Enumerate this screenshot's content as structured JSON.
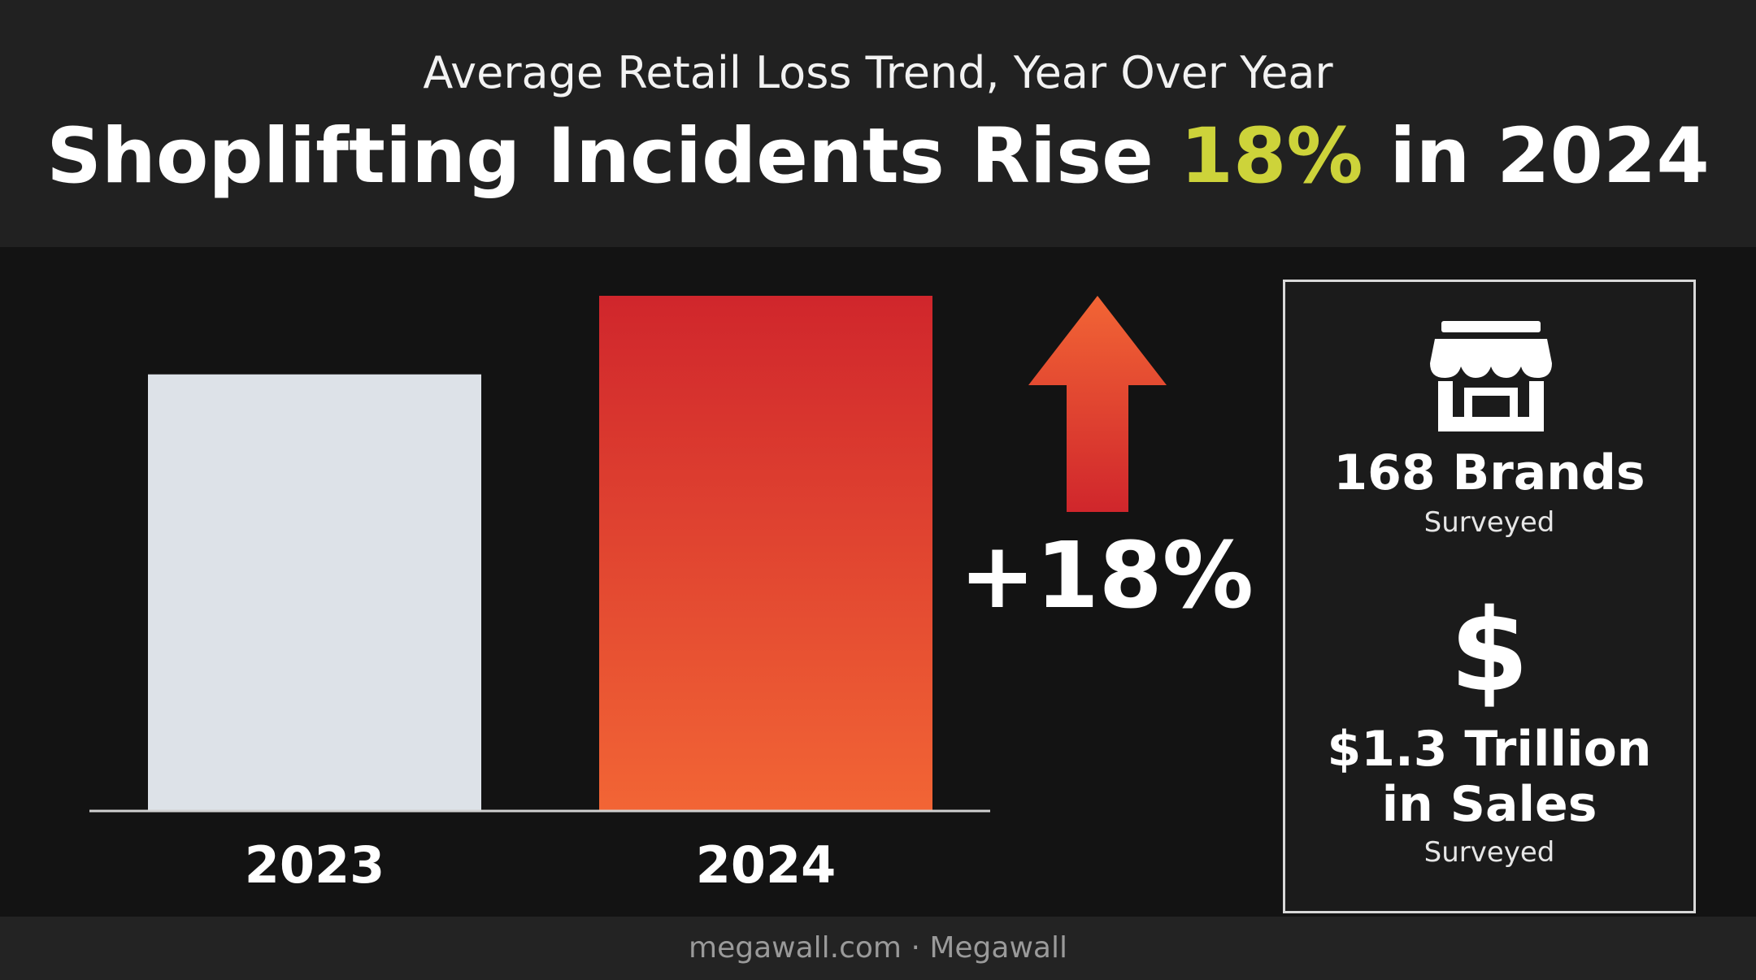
{
  "header": {
    "subtitle": "Average Retail Loss Trend, Year Over Year",
    "title_part1": "Shoplifting Incidents Rise ",
    "title_highlight": "18%",
    "title_part2": " in 2024"
  },
  "colors": {
    "background": "#131313",
    "header_bg": "#212121",
    "accent": "#cdd33a",
    "bar_2023": "#dde2e8",
    "bar_2024_top": "#d0262c",
    "bar_2024_bottom": "#f26535"
  },
  "chart_data": {
    "type": "bar",
    "categories": [
      "2023",
      "2024"
    ],
    "values": [
      100,
      118
    ],
    "ylim": [
      0,
      118
    ],
    "grid": false,
    "legend": "none",
    "annotations": [
      {
        "text": "+18%",
        "icon": "up-arrow-icon"
      }
    ]
  },
  "stats": {
    "store_icon": "store-icon",
    "brands_value": "168 Brands",
    "brands_sub": "Surveyed",
    "dollar_icon_glyph": "$",
    "sales_line1": "$1.3 Trillion",
    "sales_line2": "in Sales",
    "sales_sub": "Surveyed"
  },
  "footer": {
    "text": "megawall.com · Megawall"
  }
}
